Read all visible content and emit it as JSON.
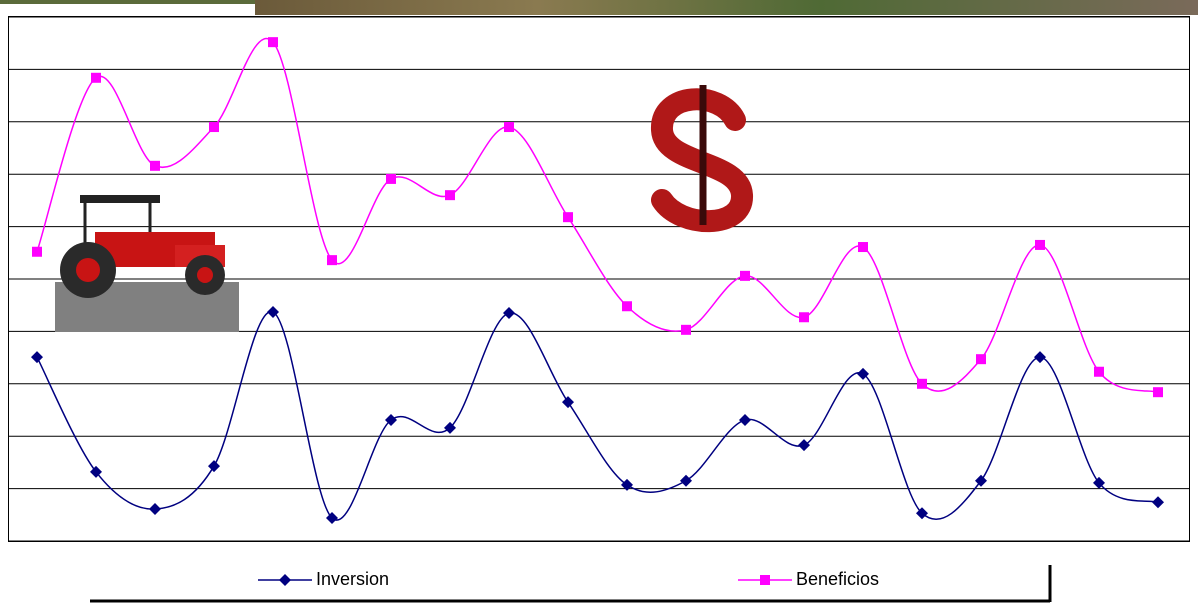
{
  "chart_data": {
    "type": "line",
    "categories": [
      null,
      null,
      null,
      null,
      null,
      null,
      null,
      null,
      null,
      null,
      null,
      null,
      null,
      null,
      null,
      null,
      null,
      null,
      null,
      null
    ],
    "series": [
      {
        "name": "Inversion",
        "color": "#000080",
        "marker": "diamond",
        "values": [
          3.51,
          1.32,
          0.61,
          1.43,
          4.37,
          0.44,
          2.31,
          2.16,
          4.35,
          2.65,
          1.07,
          1.15,
          2.31,
          1.83,
          3.19,
          0.53,
          1.15,
          3.51,
          1.11,
          0.74
        ]
      },
      {
        "name": "Beneficios",
        "color": "#ff00ff",
        "marker": "square",
        "values": [
          5.52,
          8.84,
          7.16,
          7.9,
          9.52,
          5.36,
          6.91,
          6.6,
          7.9,
          6.18,
          4.48,
          4.03,
          5.06,
          4.27,
          5.61,
          3.0,
          3.47,
          5.65,
          3.23,
          2.84
        ]
      }
    ],
    "ylim": [
      0,
      10
    ],
    "yticks": [
      0,
      1,
      2,
      3,
      4,
      5,
      6,
      7,
      8,
      9,
      10
    ],
    "grid": true,
    "smooth": true,
    "legend": "bottom"
  }
}
